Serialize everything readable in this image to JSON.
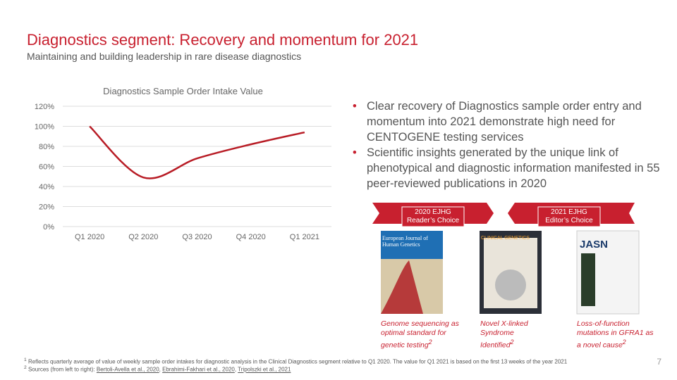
{
  "header": {
    "title": "Diagnostics segment: Recovery and momentum for 2021",
    "subtitle": "Maintaining and building leadership in rare disease diagnostics"
  },
  "chart_data": {
    "type": "line",
    "title": "Diagnostics Sample Order Intake Value",
    "categories": [
      "Q1 2020",
      "Q2 2020",
      "Q3 2020",
      "Q4 2020",
      "Q1 2021"
    ],
    "values": [
      100,
      49,
      68,
      82,
      94
    ],
    "color": "#b81c25",
    "ylim": [
      0,
      120
    ],
    "yticks": [
      {
        "value": 0,
        "label": "0%"
      },
      {
        "value": 20,
        "label": "20%"
      },
      {
        "value": 40,
        "label": "40%"
      },
      {
        "value": 60,
        "label": "60%"
      },
      {
        "value": 80,
        "label": "80%"
      },
      {
        "value": 100,
        "label": "100%"
      },
      {
        "value": 120,
        "label": "120%"
      }
    ],
    "grid": true,
    "smooth": true
  },
  "bullets": [
    "Clear recovery of Diagnostics sample order entry and momentum into 2021 demonstrate high need for CENTOGENE testing services",
    "Scientific insights generated by the unique link of phenotypical and diagnostic information manifested in 55 peer-reviewed publications in 2020"
  ],
  "banners": [
    {
      "lines": [
        "2020 EJHG",
        "Reader’s Choice"
      ]
    },
    {
      "lines": [
        "2021 EJHG",
        "Editor’s Choice"
      ]
    }
  ],
  "covers": [
    {
      "title": "European Journal of Human Genetics"
    },
    {
      "title": "CLINICAL GENETICS"
    },
    {
      "title": "JASN"
    }
  ],
  "publications": [
    {
      "text": "Genome sequencing as optimal standard for genetic testing",
      "note": "2"
    },
    {
      "text": "Novel X-linked Syndrome Identified",
      "note": "2"
    },
    {
      "text": "Loss-of-function mutations in GFRA1 as a novel cause",
      "note": "2"
    }
  ],
  "footnotes": {
    "note1": {
      "mark": "1",
      "text": "Reflects quarterly average of value of weekly sample order intakes for diagnostic analysis in the Clinical Diagnostics segment relative to Q1 2020. The value for Q1 2021 is based on the first 13 weeks of the year 2021"
    },
    "note2": {
      "mark": "2",
      "text": "Sources (from left to right):",
      "links": [
        "Bertoli-Avella et al., 2020",
        "Ebrahimi-Fakhari et al., 2020",
        "Tripolszki et al., 2021"
      ]
    }
  },
  "page_number": "7"
}
